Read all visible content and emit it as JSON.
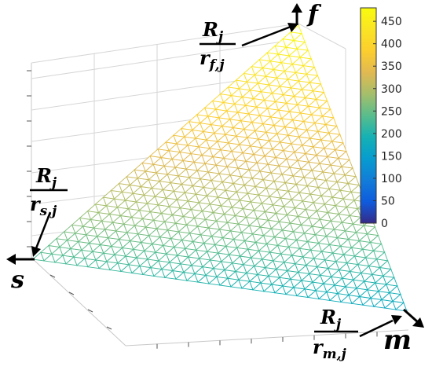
{
  "chart_data": {
    "type": "surface",
    "title": "",
    "xlabel": "",
    "ylabel": "",
    "zlabel": "",
    "colormap": "parula",
    "grid": true,
    "vertices": {
      "s": {
        "axis_label": "s",
        "annotation": {
          "numerator": "R",
          "numerator_sub": "j",
          "denominator": "r",
          "denominator_sub": "s,j"
        }
      },
      "f": {
        "axis_label": "f",
        "value": 480,
        "annotation": {
          "numerator": "R",
          "numerator_sub": "j",
          "denominator": "r",
          "denominator_sub": "f,j"
        }
      },
      "m": {
        "axis_label": "m",
        "annotation": {
          "numerator": "R",
          "numerator_sub": "j",
          "denominator": "r",
          "denominator_sub": "m,j"
        }
      }
    },
    "surface_values": {
      "s": 230,
      "m": 165,
      "f": 480
    },
    "colorbar": {
      "range": [
        0,
        480
      ],
      "ticks": [
        "0",
        "50",
        "100",
        "150",
        "200",
        "250",
        "300",
        "350",
        "400",
        "450"
      ]
    }
  }
}
